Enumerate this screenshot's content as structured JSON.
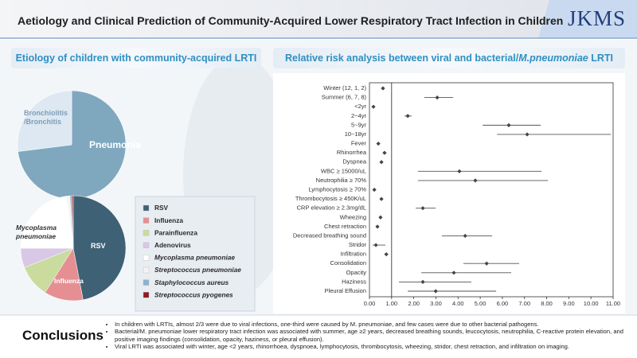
{
  "header": {
    "title": "Aetiology and Clinical Prediction of Community-Acquired Lower Respiratory Tract Infection in Children",
    "logo": "JKMS"
  },
  "chart_data": [
    {
      "type": "pie",
      "title": "Etiology of children with community-acquired LRTI",
      "categories": [
        "Pneumonia",
        "Bronchiolitis /Bronchitis"
      ],
      "values": [
        73,
        27
      ],
      "colors": [
        "#7fa8bf",
        "#dde8f2"
      ]
    },
    {
      "type": "pie",
      "categories": [
        "RSV",
        "Influenza",
        "Parainfluenza",
        "Adenovirus",
        "Mycoplasma pneumoniae",
        "Streptococcus pneumoniae",
        "Staphylococcus aureus",
        "Streptococcus pyogenes"
      ],
      "values": [
        47,
        12,
        10,
        6,
        23,
        1,
        0.6,
        0.4
      ],
      "colors": [
        "#3e6175",
        "#e58f92",
        "#c9dc9e",
        "#d8c8e6",
        "#ffffff",
        "#f4f4f4",
        "#8db2ca",
        "#8e1c22"
      ],
      "italic": [
        false,
        false,
        false,
        false,
        true,
        true,
        true,
        true
      ],
      "legend": true
    },
    {
      "type": "forest",
      "title": [
        "Relative risk analysis between viral and bacterial/",
        "M.pneumoniae",
        " LRTI"
      ],
      "categories": [
        "Winter (12, 1, 2)",
        "Summer (6, 7, 8)",
        "<2yr",
        "2~4yr",
        "5~9yr",
        "10~18yr",
        "Fever",
        "Rhinorrhea",
        "Dyspnea",
        "WBC ≥ 15000/uL",
        "Neutrophilia ≥ 70%",
        "Lymphocytosis ≥ 70%",
        "Thrombocytosis ≥ 450K/uL",
        "CRP elevation ≥ 2.3mg/dL",
        "Wheezing",
        "Chest retraction",
        "Decreased breathing sound",
        "Stridor",
        "Infiltration",
        "Consolidation",
        "Opacity",
        "Haziness",
        "Pleural Effusion"
      ],
      "values": [
        0.61,
        3.06,
        0.18,
        1.73,
        6.29,
        7.12,
        0.4,
        0.68,
        0.54,
        4.06,
        4.78,
        0.22,
        0.54,
        2.41,
        0.5,
        0.36,
        4.32,
        0.29,
        0.76,
        5.29,
        3.81,
        2.41,
        2.99
      ],
      "lower": [
        0.55,
        2.48,
        0.12,
        1.58,
        5.11,
        5.76,
        0.35,
        0.6,
        0.47,
        2.19,
        2.19,
        0.17,
        0.47,
        2.09,
        0.44,
        0.3,
        3.27,
        0.14,
        0.68,
        4.24,
        2.34,
        1.33,
        1.73
      ],
      "upper": [
        0.68,
        3.78,
        0.25,
        1.91,
        7.73,
        10.9,
        0.45,
        0.77,
        0.62,
        7.77,
        8.06,
        0.28,
        0.62,
        2.99,
        0.57,
        0.43,
        5.54,
        0.72,
        0.85,
        6.76,
        6.4,
        4.6,
        5.72
      ],
      "xlim": [
        0,
        11
      ],
      "xticks": [
        {
          "value": 0,
          "label": "0.00"
        },
        {
          "value": 1,
          "label": "1.00"
        },
        {
          "value": 2,
          "label": "2.00"
        },
        {
          "value": 3,
          "label": "3.00"
        },
        {
          "value": 4,
          "label": "4.00"
        },
        {
          "value": 5,
          "label": "5.00"
        },
        {
          "value": 6,
          "label": "6.00"
        },
        {
          "value": 7,
          "label": "7.00"
        },
        {
          "value": 8,
          "label": "8.00"
        },
        {
          "value": 9,
          "label": "9.00"
        },
        {
          "value": 10,
          "label": "10.00"
        },
        {
          "value": 11,
          "label": "11.00"
        }
      ],
      "refline": 1,
      "color": "#555555"
    }
  ],
  "conclusions": {
    "title": "Conclusions",
    "items": [
      "In children with LRTIs, almost 2/3 were due to viral infections, one-third were caused by M. pneumoniae, and few cases were due to other bacterial pathogens.",
      "Bacterial/M. pneumoniae lower respiratory tract infection was associated with summer, age ≥2 years, decreased breathing sounds, leucocytosis, neutrophilia, C-reactive protein elevation, and positive imaging findings (consolidation, opacity, haziness, or pleural effusion).",
      "Viral LRTI was associated with winter, age <2 years, rhinorrhoea, dyspnoea, lymphocytosis, thrombocytosis, wheezing, stridor, chest retraction, and infiltration on imaging."
    ]
  }
}
